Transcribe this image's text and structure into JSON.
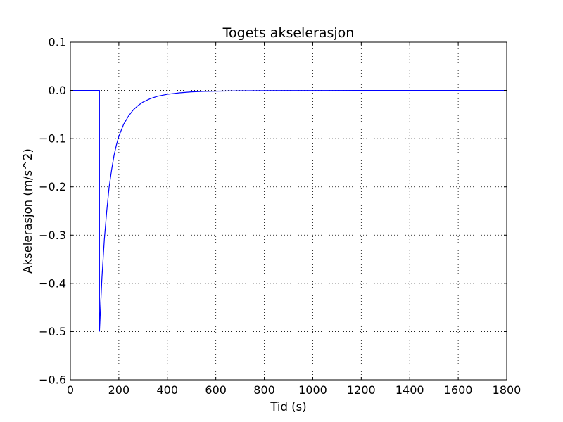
{
  "chart_data": {
    "type": "line",
    "title": "Togets akselerasjon",
    "xlabel": "Tid (s)",
    "ylabel": "Akselerasjon (m/s^2)",
    "xlim": [
      0,
      1800
    ],
    "ylim": [
      -0.6,
      0.1
    ],
    "grid": true,
    "x_ticks": [
      0,
      200,
      400,
      600,
      800,
      1000,
      1200,
      1400,
      1600,
      1800
    ],
    "x_tick_labels": [
      "0",
      "200",
      "400",
      "600",
      "800",
      "1000",
      "1200",
      "1400",
      "1600",
      "1800"
    ],
    "y_ticks": [
      0.1,
      0.0,
      -0.1,
      -0.2,
      -0.3,
      -0.4,
      -0.5,
      -0.6
    ],
    "y_tick_labels": [
      "0.1",
      "0.0",
      "−0.1",
      "−0.2",
      "−0.3",
      "−0.4",
      "−0.5",
      "−0.6"
    ],
    "series": [
      {
        "color": "#0000ff",
        "x": [
          0,
          120,
          120,
          130,
          140,
          150,
          160,
          170,
          180,
          190,
          200,
          220,
          240,
          260,
          280,
          300,
          330,
          360,
          400,
          450,
          500,
          550,
          600,
          700,
          800,
          900,
          1000,
          1200,
          1400,
          1600,
          1800
        ],
        "y": [
          0.0,
          0.0,
          -0.5,
          -0.39,
          -0.31,
          -0.25,
          -0.2,
          -0.165,
          -0.135,
          -0.113,
          -0.095,
          -0.07,
          -0.053,
          -0.04,
          -0.031,
          -0.024,
          -0.017,
          -0.012,
          -0.008,
          -0.005,
          -0.003,
          -0.002,
          -0.0015,
          -0.0008,
          -0.0005,
          -0.0003,
          -0.0002,
          -0.0001,
          0.0,
          0.0,
          0.0
        ]
      }
    ]
  },
  "colors": {
    "line": "#0000ff",
    "axes": "#000000",
    "grid": "#000000",
    "background": "#ffffff"
  }
}
